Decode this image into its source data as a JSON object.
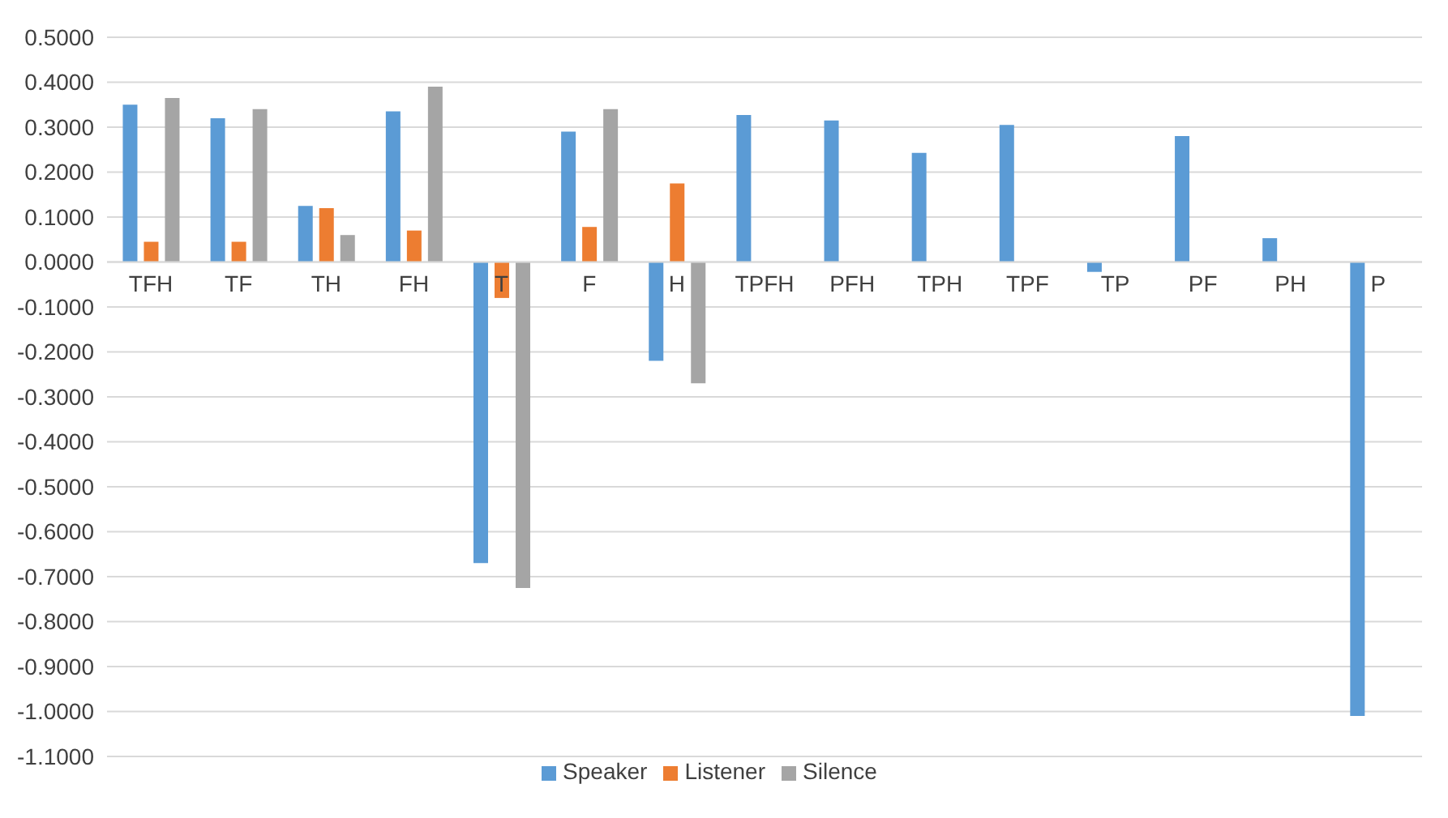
{
  "chart_data": {
    "type": "bar",
    "categories": [
      "TFH",
      "TF",
      "TH",
      "FH",
      "T",
      "F",
      "H",
      "TPFH",
      "PFH",
      "TPH",
      "TPF",
      "TP",
      "PF",
      "PH",
      "P"
    ],
    "series": [
      {
        "name": "Speaker",
        "color": "#5b9bd5",
        "values": [
          0.35,
          0.32,
          0.125,
          0.335,
          -0.67,
          0.29,
          -0.22,
          0.327,
          0.315,
          0.243,
          0.305,
          -0.022,
          0.28,
          0.053,
          -1.01
        ]
      },
      {
        "name": "Listener",
        "color": "#ed7d31",
        "values": [
          0.045,
          0.045,
          0.12,
          0.07,
          -0.08,
          0.078,
          0.175,
          null,
          null,
          null,
          null,
          null,
          null,
          null,
          null
        ]
      },
      {
        "name": "Silence",
        "color": "#a5a5a5",
        "values": [
          0.365,
          0.34,
          0.06,
          0.39,
          -0.725,
          0.34,
          -0.27,
          null,
          null,
          null,
          null,
          null,
          null,
          null,
          null
        ]
      }
    ],
    "ylim": [
      -1.1,
      0.5
    ],
    "yticks": [
      {
        "value": 0.5,
        "label": "0.5000"
      },
      {
        "value": 0.4,
        "label": "0.4000"
      },
      {
        "value": 0.3,
        "label": "0.3000"
      },
      {
        "value": 0.2,
        "label": "0.2000"
      },
      {
        "value": 0.1,
        "label": "0.1000"
      },
      {
        "value": 0,
        "label": "0.0000"
      },
      {
        "value": -0.1,
        "label": "-0.1000"
      },
      {
        "value": -0.2,
        "label": "-0.2000"
      },
      {
        "value": -0.3,
        "label": "-0.3000"
      },
      {
        "value": -0.4,
        "label": "-0.4000"
      },
      {
        "value": -0.5,
        "label": "-0.5000"
      },
      {
        "value": -0.6,
        "label": "-0.6000"
      },
      {
        "value": -0.7,
        "label": "-0.7000"
      },
      {
        "value": -0.8,
        "label": "-0.8000"
      },
      {
        "value": -0.9,
        "label": "-0.9000"
      },
      {
        "value": -1,
        "label": "-1.0000"
      },
      {
        "value": -1.1,
        "label": "-1.1000"
      }
    ],
    "grid": "y",
    "legend": "bottom"
  }
}
